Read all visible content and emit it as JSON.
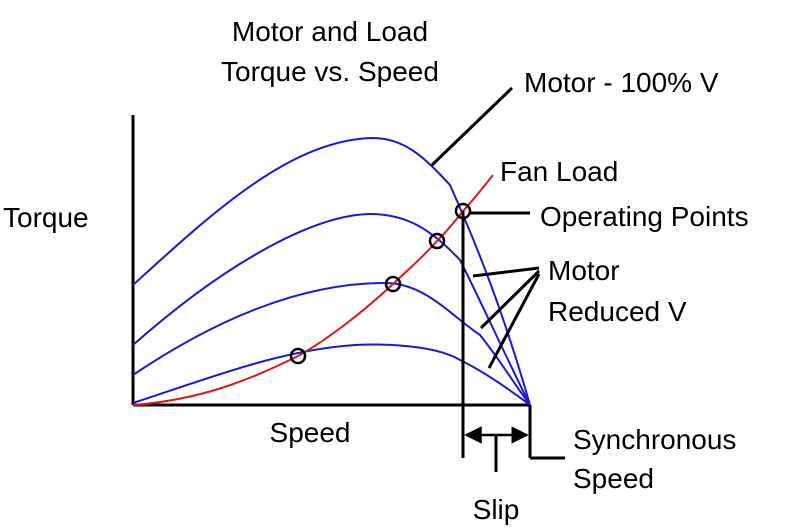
{
  "title": {
    "line1": "Motor and Load",
    "line2": "Torque vs. Speed"
  },
  "axes": {
    "y_label": "Torque",
    "x_label": "Speed"
  },
  "labels": {
    "motor_full": "Motor - 100% V",
    "fan_load": "Fan Load",
    "operating_points": "Operating Points",
    "motor_reduced_line1": "Motor",
    "motor_reduced_line2": "Reduced V",
    "synchronous_line1": "Synchronous",
    "synchronous_line2": "Speed",
    "slip": "Slip"
  },
  "colors": {
    "motor_curves": "#1a1ad6",
    "fan_load": "#e01818",
    "axes": "#000000"
  }
}
